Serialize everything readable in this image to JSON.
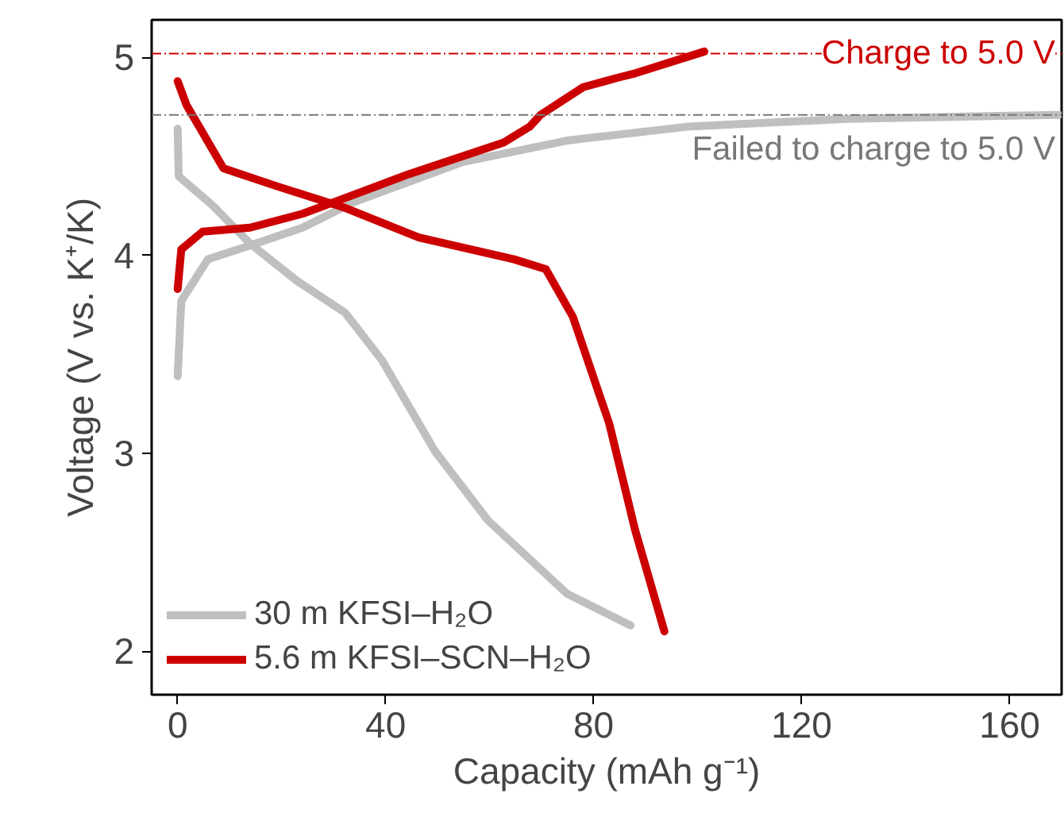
{
  "chart_data": {
    "type": "line",
    "xlabel": "Capacity (mAh g⁻¹)",
    "ylabel": "Voltage (V vs. K⁺/K)",
    "xlim": [
      -5,
      170
    ],
    "ylim": [
      1.78,
      5.19
    ],
    "xticks": [
      0,
      40,
      80,
      120,
      160
    ],
    "yticks": [
      2,
      3,
      4,
      5
    ],
    "grid": false,
    "legend": "bottom left",
    "line_style": "solid",
    "marker": "none",
    "series": [
      {
        "name": "30 m KFSI–H₂O",
        "color": "#bfbfbf",
        "x": [
          0,
          0.7,
          5.8,
          13.9,
          24,
          34,
          54.6,
          74.9,
          98,
          128.7,
          169.5
        ],
        "values": [
          3.39,
          3.77,
          3.98,
          4.05,
          4.14,
          4.27,
          4.47,
          4.58,
          4.65,
          4.69,
          4.71
        ]
      },
      {
        "color": "#bfbfbf",
        "x": [
          0,
          0.2,
          6.8,
          13.9,
          23,
          32.2,
          39.3,
          49.5,
          59.7,
          74.9,
          87.1
        ],
        "values": [
          4.64,
          4.4,
          4.25,
          4.06,
          3.87,
          3.71,
          3.47,
          3.01,
          2.66,
          2.29,
          2.13
        ]
      },
      {
        "name": "5.6 m KFSI–SCN–H₂O",
        "color": "#cc0000",
        "x": [
          0,
          0.7,
          4.8,
          13.9,
          24,
          32.2,
          44.4,
          62.7,
          67.7,
          69.8,
          78,
          85,
          88,
          101.3
        ],
        "values": [
          3.83,
          4.03,
          4.12,
          4.14,
          4.21,
          4.29,
          4.41,
          4.57,
          4.65,
          4.71,
          4.85,
          4.9,
          4.92,
          5.03
        ]
      },
      {
        "color": "#cc0000",
        "x": [
          0,
          1.7,
          8.8,
          19,
          32.2,
          46.4,
          64.7,
          70.8,
          76,
          83,
          88,
          93.6
        ],
        "values": [
          4.88,
          4.76,
          4.44,
          4.35,
          4.24,
          4.09,
          3.98,
          3.93,
          3.69,
          3.15,
          2.61,
          2.1
        ]
      }
    ],
    "ref_lines": [
      {
        "axis": "y",
        "value": 5.02,
        "label": "Charge to 5.0 V",
        "color": "#cc0000",
        "line_style": "dashed"
      },
      {
        "axis": "y",
        "value": 4.71,
        "label": "Failed to charge to 5.0 V",
        "color": "#777777",
        "line_style": "dashed"
      }
    ]
  }
}
